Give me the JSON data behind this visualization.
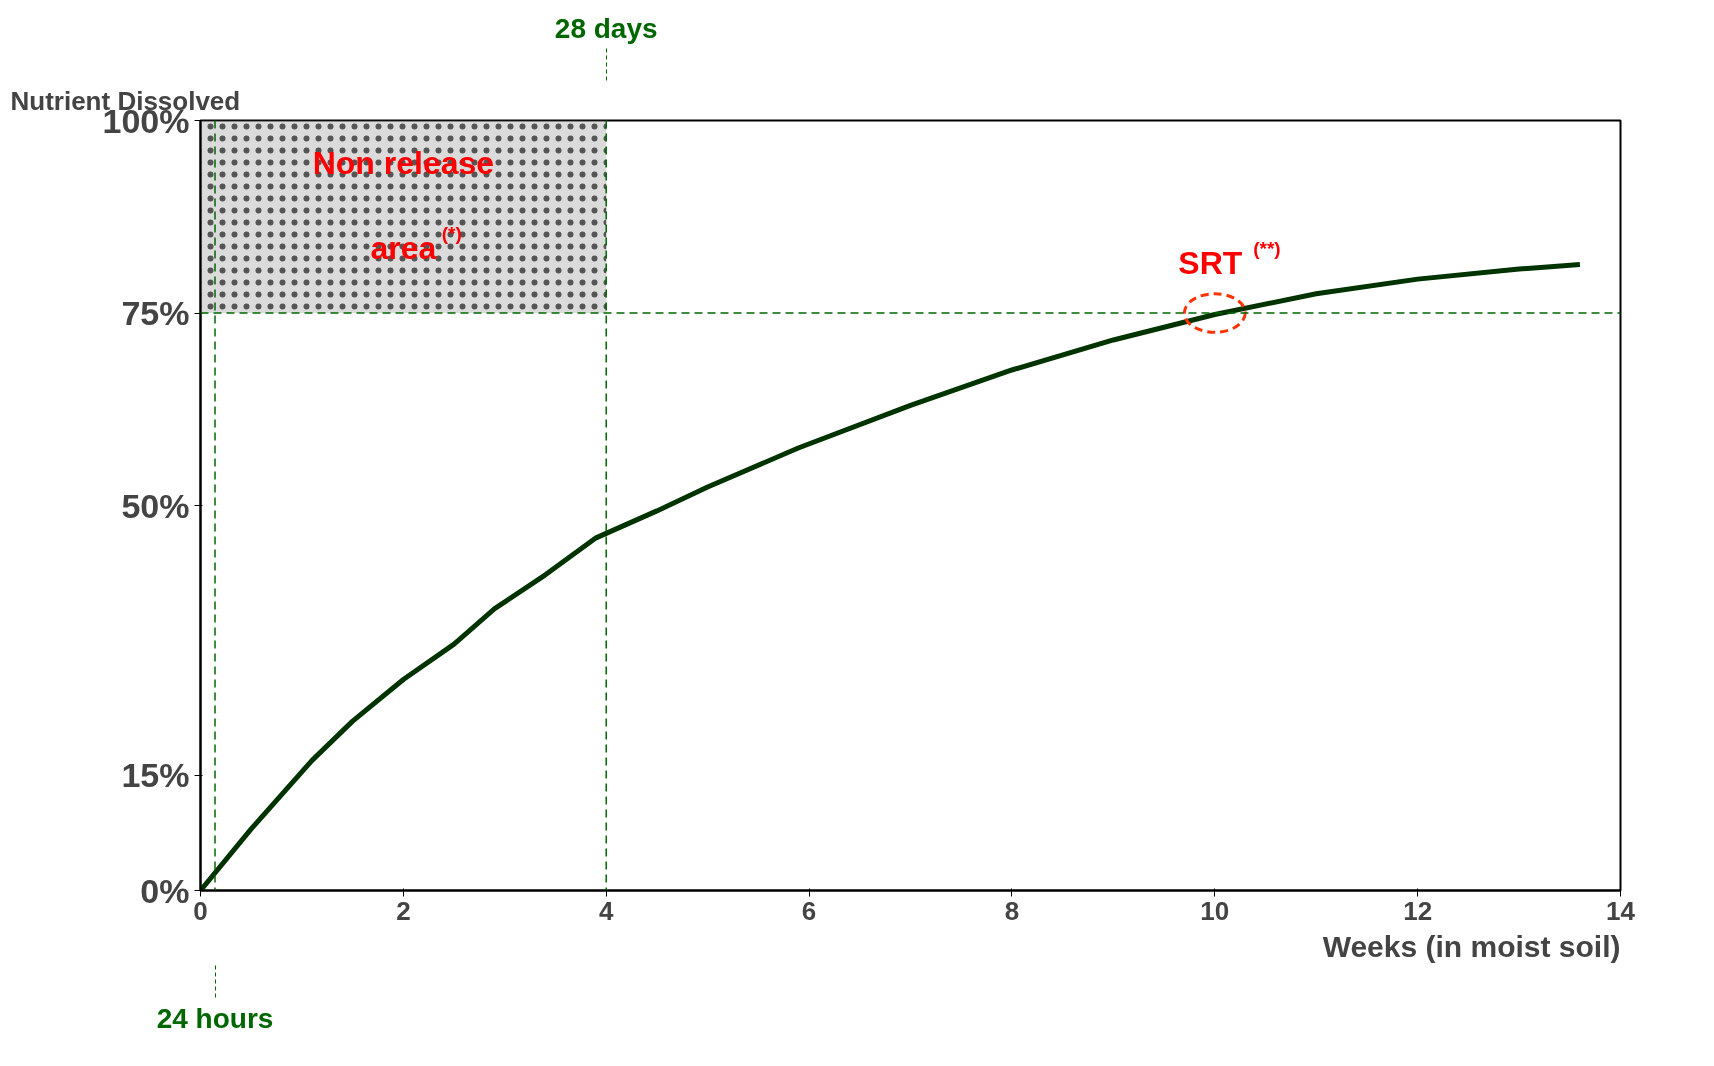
{
  "chart_data": {
    "type": "line",
    "xlabel": "Weeks (in moist soil)",
    "ylabel": "Nutrient Dissolved",
    "x": [
      0,
      0.5,
      1.1,
      1.5,
      2,
      2.5,
      2.9,
      3.4,
      3.9,
      4.5,
      5,
      5.9,
      7,
      8,
      9,
      10,
      11,
      12,
      13,
      13.6
    ],
    "series": [
      {
        "color": "#003300",
        "values": [
          0,
          8,
          16.9,
          22,
          27.4,
          32,
          36.6,
          41,
          45.8,
          49.3,
          52.4,
          57.5,
          63,
          67.6,
          71.5,
          74.8,
          77.5,
          79.4,
          80.7,
          81.3
        ]
      }
    ],
    "xlim": [
      0,
      14
    ],
    "ylim": [
      0,
      100
    ],
    "xticks": [
      0,
      2,
      4,
      6,
      8,
      10,
      12,
      14
    ],
    "yticks": [
      {
        "value": 0,
        "label": "0%"
      },
      {
        "value": 15,
        "label": "15%"
      },
      {
        "value": 50,
        "label": "50%"
      },
      {
        "value": 75,
        "label": "75%"
      },
      {
        "value": 100,
        "label": "100%"
      }
    ],
    "ref_lines": [
      {
        "axis": "y",
        "value": 75,
        "color": "#006600",
        "line_style": "dashed"
      },
      {
        "axis": "x",
        "value": 0.143,
        "label": "24 hours",
        "color": "#006600",
        "line_style": "dashed"
      },
      {
        "axis": "x",
        "value": 4,
        "label": "28 days",
        "color": "#006600",
        "line_style": "dashed"
      }
    ],
    "bands": [
      {
        "axis": "x",
        "from": 0,
        "to": 4,
        "label": "Non release area$^{(*)}$",
        "color": "#999999"
      }
    ],
    "annotations": [
      {
        "text": "SRT $^{(**)}$",
        "x": 10,
        "y": 75
      }
    ],
    "grid": false,
    "marker": "none",
    "line_style": "solid"
  }
}
